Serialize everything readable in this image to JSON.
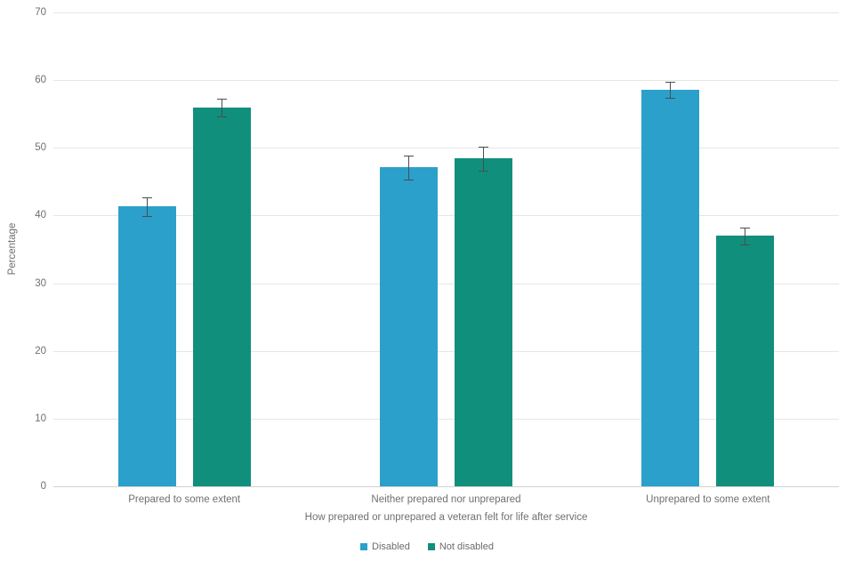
{
  "chart_data": {
    "type": "bar",
    "title": "",
    "categories": [
      "Prepared to some extent",
      "Neither prepared nor unprepared",
      "Unprepared to some extent"
    ],
    "series": [
      {
        "name": "Disabled",
        "color": "#2BA0CB",
        "values": [
          41.4,
          47.2,
          58.6
        ],
        "errors": [
          1.3,
          1.7,
          1.1
        ]
      },
      {
        "name": "Not disabled",
        "color": "#118F7D",
        "values": [
          56.0,
          48.5,
          37.0
        ],
        "errors": [
          1.3,
          1.7,
          1.2
        ]
      }
    ],
    "xlabel": "How prepared or unprepared a veteran felt for life after service",
    "ylabel": "Percentage",
    "ylim": [
      0,
      70
    ],
    "yticks": [
      0,
      10,
      20,
      30,
      40,
      50,
      60,
      70
    ],
    "grid": true,
    "legend_position": "bottom"
  }
}
